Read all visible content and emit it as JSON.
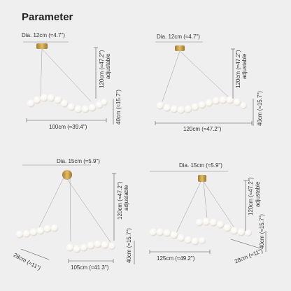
{
  "title": "Parameter",
  "panels": [
    {
      "dia": "Dia. 12cm (≈4.7\")",
      "height_adj": "120cm (≈47.2\")",
      "adjustable": "adjustable",
      "drop": "40cm (≈15.7\")",
      "width": "100cm (≈39.4\")"
    },
    {
      "dia": "Dia. 12cm (≈4.7\")",
      "height_adj": "120cm (≈47.2\")",
      "adjustable": "adjustable",
      "drop": "40cm (≈15.7\")",
      "width": "120cm (≈47.2\")"
    },
    {
      "dia": "Dia. 15cm (≈5.9\")",
      "height_adj": "120cm (≈47.2\")",
      "adjustable": "adjustable",
      "drop": "40cm (≈15.7\")",
      "width": "105cm (≈41.3\")",
      "depth": "28cm (≈11\")"
    },
    {
      "dia": "Dia. 15cm (≈5.9\")",
      "height_adj": "120cm (≈47.2\")",
      "adjustable": "adjustable",
      "drop": "40cm (≈15.7\")",
      "width": "125cm (≈49.2\")",
      "depth": "28cm (≈11\")"
    }
  ],
  "colors": {
    "background": "#efefef",
    "canopy": "#c9a24a",
    "globe": "#ffffff",
    "line": "#555555"
  }
}
